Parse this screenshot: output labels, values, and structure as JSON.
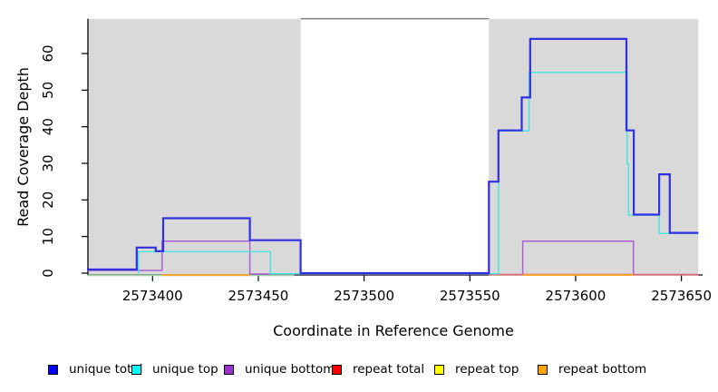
{
  "chart_data": {
    "type": "line",
    "subtype": "step-coverage",
    "title": "",
    "xlabel": "Coordinate in Reference Genome",
    "ylabel": "Read Coverage Depth",
    "xlim": [
      2573369,
      2573660
    ],
    "ylim": [
      0,
      69.5
    ],
    "grid": false,
    "x_ticks": [
      2573400,
      2573450,
      2573500,
      2573550,
      2573600,
      2573650
    ],
    "y_ticks": [
      0,
      10,
      20,
      30,
      40,
      50,
      60
    ],
    "shaded_regions": [
      {
        "name": "left-gray-region",
        "x_start": 2573369,
        "x_end": 2573470,
        "color": "#d9d9d9"
      },
      {
        "name": "right-gray-region",
        "x_start": 2573559,
        "x_end": 2573658,
        "color": "#d9d9d9"
      }
    ],
    "gap_top_border": {
      "x_start": 2573470,
      "x_end": 2573559,
      "depth": 69.5,
      "color": "#808080"
    },
    "series": [
      {
        "name": "zero baseline",
        "color": "#9cd6a4",
        "width": 1.6,
        "dy": 2.4,
        "in_legend": false,
        "paths": [
          [
            [
              2573369,
              0
            ],
            [
              2573467,
              0
            ]
          ]
        ]
      },
      {
        "name": "repeat top",
        "color": "#ede93f",
        "width": 1.2,
        "dy": 1.9,
        "in_legend": true,
        "paths": [
          [
            [
              2573559,
              0
            ],
            [
              2573658,
              0
            ]
          ]
        ]
      },
      {
        "name": "unique bottom",
        "color": "#a95fd5",
        "width": 1.5,
        "dy": 1.0,
        "in_legend": true,
        "paths": [
          [
            [
              2573369,
              1
            ],
            [
              2573404.5,
              1
            ],
            [
              2573404.5,
              9
            ],
            [
              2573446,
              9
            ],
            [
              2573446,
              0
            ],
            [
              2573559,
              0
            ]
          ],
          [
            [
              2573575,
              0
            ],
            [
              2573575,
              9
            ],
            [
              2573627.3,
              9
            ],
            [
              2573627.3,
              0
            ]
          ]
        ]
      },
      {
        "name": "repeat total",
        "color": "#e0607e",
        "width": 1.6,
        "dy": 1.6,
        "in_legend": true,
        "paths": [
          [
            [
              2573559,
              0
            ],
            [
              2573658,
              0
            ]
          ]
        ]
      },
      {
        "name": "repeat bottom",
        "color": "#ffa41b",
        "width": 1.8,
        "dy": 2.0,
        "in_legend": true,
        "paths": [
          [
            [
              2573404.5,
              0
            ],
            [
              2573446,
              0
            ]
          ],
          [
            [
              2573575,
              0
            ],
            [
              2573627.3,
              0
            ]
          ]
        ]
      },
      {
        "name": "unique top",
        "color": "#4fe3dd",
        "width": 1.5,
        "dy": 0.6,
        "in_legend": true,
        "paths": [
          [
            [
              2573393.3,
              0
            ],
            [
              2573393.3,
              6
            ],
            [
              2573455.7,
              6
            ],
            [
              2573455.7,
              0
            ],
            [
              2573563.5,
              0
            ],
            [
              2573563.5,
              39
            ],
            [
              2573578,
              39
            ],
            [
              2573578,
              55
            ],
            [
              2573624.3,
              55
            ],
            [
              2573624.3,
              30
            ],
            [
              2573625,
              30
            ],
            [
              2573625,
              16
            ],
            [
              2573639.5,
              16
            ],
            [
              2573639.5,
              11
            ],
            [
              2573658,
              11
            ]
          ]
        ]
      },
      {
        "name": "unique total",
        "color": "#3030e0",
        "width": 2.2,
        "dy": 0,
        "in_legend": true,
        "paths": [
          [
            [
              2573369,
              1
            ],
            [
              2573392.5,
              1
            ],
            [
              2573392.5,
              7
            ],
            [
              2573401.5,
              7
            ],
            [
              2573401.5,
              6
            ],
            [
              2573405,
              6
            ],
            [
              2573405,
              15
            ],
            [
              2573446,
              15
            ],
            [
              2573446,
              9
            ],
            [
              2573470,
              9
            ],
            [
              2573470,
              0
            ],
            [
              2573559,
              0
            ],
            [
              2573559,
              25
            ],
            [
              2573563.5,
              25
            ],
            [
              2573563.5,
              39
            ],
            [
              2573574.5,
              39
            ],
            [
              2573574.5,
              48
            ],
            [
              2573578.5,
              48
            ],
            [
              2573578.5,
              64
            ],
            [
              2573624,
              64
            ],
            [
              2573624,
              39
            ],
            [
              2573627.5,
              39
            ],
            [
              2573627.5,
              16
            ],
            [
              2573639.5,
              16
            ],
            [
              2573639.5,
              27
            ],
            [
              2573644.5,
              27
            ],
            [
              2573644.5,
              11
            ],
            [
              2573658,
              11
            ]
          ]
        ]
      }
    ],
    "legend": {
      "position": "bottom",
      "entries": [
        {
          "label": "unique total",
          "swatch": "#0000ff"
        },
        {
          "label": "unique top",
          "swatch": "#00ffff"
        },
        {
          "label": "unique bottom",
          "swatch": "#9932cc"
        },
        {
          "label": "repeat total",
          "swatch": "#ff0000"
        },
        {
          "label": "repeat top",
          "swatch": "#ffff00"
        },
        {
          "label": "repeat bottom",
          "swatch": "#ffa500"
        }
      ]
    }
  }
}
